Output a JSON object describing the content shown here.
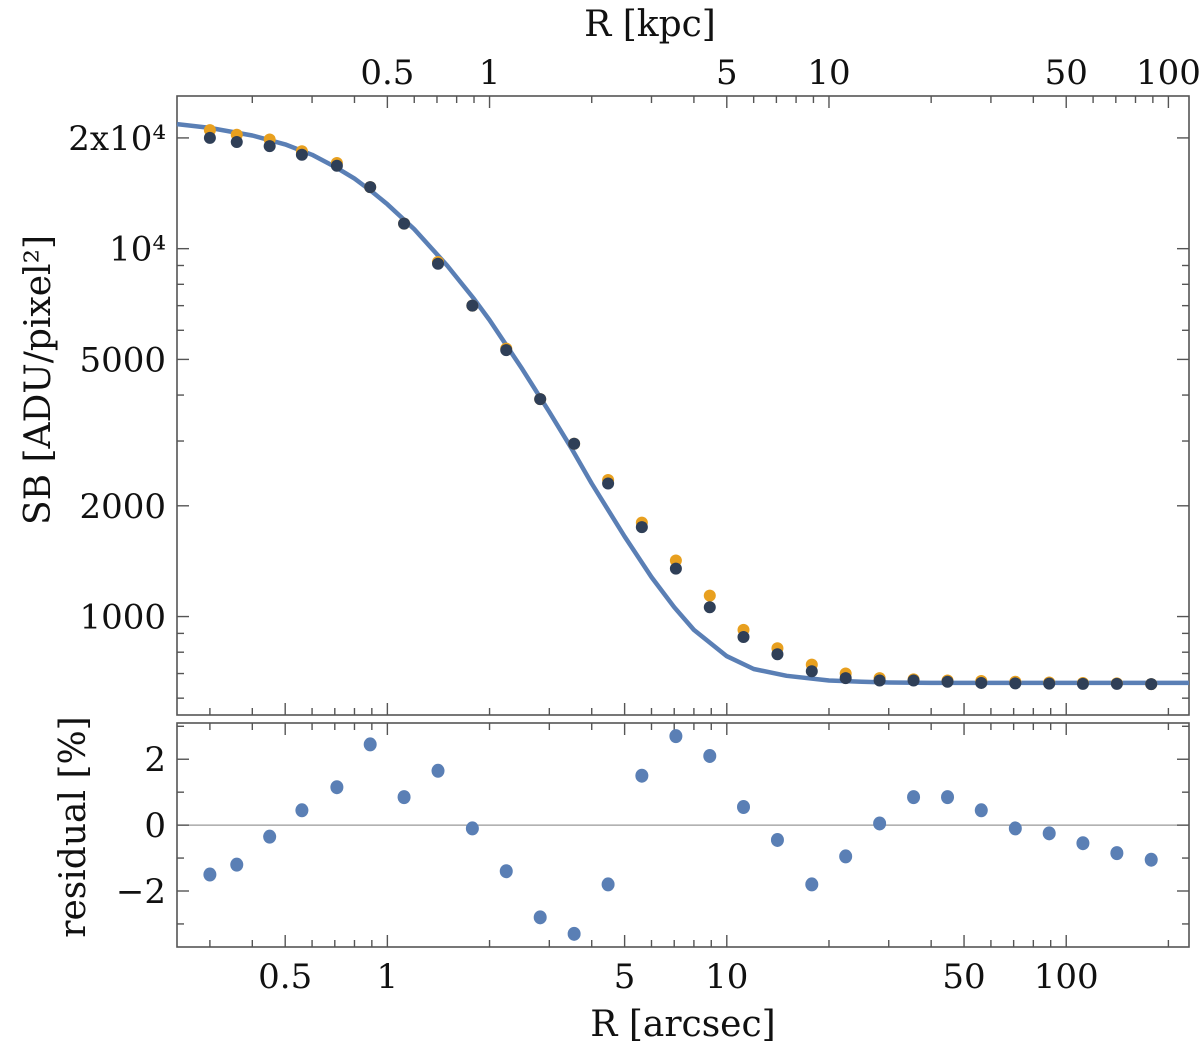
{
  "chart_data": [
    {
      "type": "scatter",
      "panel": "main",
      "xlabel": "R [arcsec]",
      "secondary_xlabel": "R [kpc]",
      "ylabel": "SB [ADU/pixel²]",
      "x_scale": "log",
      "y_scale": "log",
      "xlim": [
        0.24,
        230
      ],
      "ylim": [
        540,
        26000
      ],
      "x_tick_labels": [
        "0.5",
        "1",
        "5",
        "10",
        "50",
        "100"
      ],
      "x_tick_values": [
        0.5,
        1,
        5,
        10,
        50,
        100
      ],
      "top_tick_labels": [
        "0.5",
        "1",
        "5",
        "10",
        "50",
        "100"
      ],
      "top_tick_values_kpc": [
        0.5,
        1,
        5,
        10,
        50,
        100
      ],
      "y_tick_labels": [
        "1000",
        "2000",
        "5000",
        "10⁴",
        "2x10⁴"
      ],
      "y_tick_values": [
        1000,
        2000,
        5000,
        10000,
        20000
      ],
      "colors": {
        "model": "#5a7fb5",
        "data_a": "#e8a01f",
        "data_b": "#2f3f57",
        "residual": "#5a7fb5",
        "zero_line": "#999999"
      },
      "series": [
        {
          "kind": "line",
          "x": [
            0.24,
            0.3,
            0.4,
            0.5,
            0.6,
            0.7,
            0.8,
            0.9,
            1.0,
            1.2,
            1.5,
            1.8,
            2.0,
            2.5,
            3.0,
            3.5,
            4.0,
            5.0,
            6.0,
            7.0,
            8.0,
            10,
            12,
            15,
            20,
            25,
            30,
            40,
            50,
            70,
            100,
            150,
            230
          ],
          "y": [
            21800,
            21300,
            20300,
            19200,
            18000,
            16700,
            15500,
            14300,
            13200,
            11300,
            9000,
            7300,
            6400,
            4700,
            3600,
            2850,
            2300,
            1650,
            1280,
            1060,
            920,
            780,
            720,
            690,
            670,
            665,
            662,
            660,
            660,
            660,
            660,
            660,
            660
          ]
        },
        {
          "kind": "points",
          "x": [
            0.3,
            0.36,
            0.45,
            0.56,
            0.71,
            0.89,
            1.12,
            1.41,
            1.78,
            2.24,
            2.82,
            3.55,
            4.47,
            5.62,
            7.08,
            8.91,
            11.2,
            14.1,
            17.8,
            22.4,
            28.2,
            35.5,
            44.7,
            56.2,
            70.8,
            89.1,
            112,
            141,
            178
          ],
          "y": [
            20000,
            19500,
            19000,
            18000,
            16800,
            14700,
            11700,
            9100,
            7000,
            5300,
            3900,
            2950,
            2300,
            1750,
            1350,
            1060,
            880,
            790,
            710,
            680,
            670,
            670,
            665,
            660,
            658,
            657,
            656,
            656,
            655
          ]
        },
        {
          "kind": "points",
          "x": [
            0.3,
            0.36,
            0.45,
            0.56,
            0.71,
            0.89,
            1.12,
            1.41,
            1.78,
            2.24,
            2.82,
            3.55,
            4.47,
            5.62,
            7.08,
            8.91,
            11.2,
            14.1,
            17.8,
            22.4,
            28.2,
            35.5,
            44.7,
            56.2,
            70.8,
            89.1,
            112,
            141,
            178
          ],
          "y": [
            21000,
            20400,
            19800,
            18400,
            17100,
            14700,
            11700,
            9200,
            7000,
            5350,
            3900,
            2950,
            2350,
            1800,
            1420,
            1140,
            920,
            820,
            740,
            700,
            680,
            675,
            670,
            668,
            665,
            662,
            660,
            658,
            655
          ]
        }
      ]
    },
    {
      "type": "scatter",
      "panel": "residual",
      "xlabel": "R [arcsec]",
      "ylabel": "residual [%]",
      "x_scale": "log",
      "xlim": [
        0.24,
        230
      ],
      "ylim": [
        -3.7,
        3.1
      ],
      "y_tick_labels": [
        "−2",
        "0",
        "2"
      ],
      "y_tick_values": [
        -2,
        0,
        2
      ],
      "series": [
        {
          "kind": "points",
          "x": [
            0.3,
            0.36,
            0.45,
            0.56,
            0.71,
            0.89,
            1.12,
            1.41,
            1.78,
            2.24,
            2.82,
            3.55,
            4.47,
            5.62,
            7.08,
            8.91,
            11.2,
            14.1,
            17.8,
            22.4,
            28.2,
            35.5,
            44.7,
            56.2,
            70.8,
            89.1,
            112,
            141,
            178
          ],
          "y": [
            -1.5,
            -1.2,
            -0.35,
            0.45,
            1.15,
            2.45,
            0.85,
            1.65,
            -0.1,
            -1.4,
            -2.8,
            -3.3,
            -1.8,
            1.5,
            2.7,
            2.1,
            0.55,
            -0.45,
            -1.8,
            -0.95,
            0.05,
            0.85,
            0.85,
            0.45,
            -0.1,
            -0.25,
            -0.55,
            -0.85,
            -1.05
          ]
        }
      ]
    }
  ]
}
